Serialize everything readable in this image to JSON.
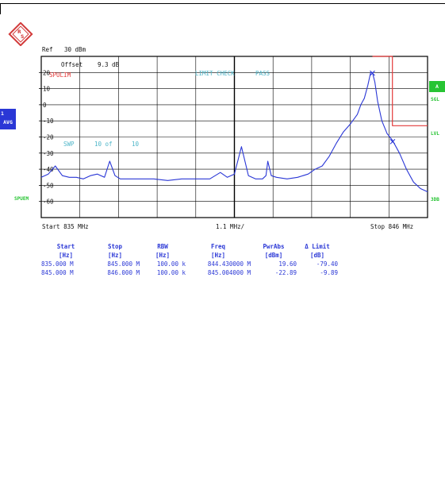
{
  "header": {
    "ref_label": "Ref",
    "ref_value": "30 dBm",
    "offset_label": "Offset",
    "offset_value": "9.3 dB"
  },
  "badges": {
    "trace": [
      "1",
      "AVG"
    ],
    "right": "A",
    "right_labels": [
      "SGL",
      "LVL",
      "3DB"
    ],
    "left_bottom": "SPUEM"
  },
  "overlay": {
    "limit_line": "SPULIM",
    "limit_check": "LIMIT CHECK",
    "limit_result": "PASS",
    "sweep_label": "SWP",
    "sweep_count": "10 of",
    "sweep_total": "10"
  },
  "footer": {
    "start": "Start 835 MHz",
    "span": "1.1 MHz/",
    "stop": "Stop 846 MHz"
  },
  "colors": {
    "trace": "#2a37d6",
    "limit": "#e43a3a",
    "grid": "#000000",
    "badge_blue": "#2a37d6",
    "badge_green": "#27c433",
    "overlay_text": "#4fb6c9"
  },
  "chart_data": {
    "type": "line",
    "x_unit": "MHz",
    "y_unit": "dBm",
    "xlim": [
      835,
      846
    ],
    "ylim": [
      -70,
      30
    ],
    "y_ticks": [
      20,
      10,
      0,
      -10,
      -20,
      -30,
      -40,
      -50,
      -60
    ],
    "y_tick_labels": [
      "20",
      "10",
      "0",
      "-10",
      "-20",
      "-30",
      "-40",
      "-50",
      "-60"
    ],
    "grid": true,
    "series": [
      {
        "role": "trace",
        "x": [
          835.0,
          835.2,
          835.4,
          835.6,
          835.8,
          836.0,
          836.2,
          836.4,
          836.6,
          836.8,
          836.95,
          837.1,
          837.25,
          837.5,
          837.8,
          838.2,
          838.6,
          839.0,
          839.4,
          839.8,
          840.1,
          840.3,
          840.5,
          840.7,
          840.9,
          841.1,
          841.3,
          841.4,
          841.45,
          841.55,
          841.7,
          842.0,
          842.3,
          842.6,
          842.8,
          843.0,
          843.2,
          843.4,
          843.6,
          843.8,
          844.0,
          844.1,
          844.2,
          844.3,
          844.38,
          844.43,
          844.5,
          844.58,
          844.7,
          844.85,
          845.0,
          845.2,
          845.4,
          845.6,
          845.8,
          846.0
        ],
        "y": [
          -45,
          -43,
          -38,
          -44,
          -45,
          -45,
          -46,
          -44,
          -43,
          -45,
          -35,
          -44,
          -46,
          -46,
          -46,
          -46,
          -47,
          -46,
          -46,
          -46,
          -42,
          -45,
          -43,
          -26,
          -44,
          -46,
          -46,
          -44,
          -35,
          -44,
          -45,
          -46,
          -45,
          -43,
          -40,
          -38,
          -32,
          -24,
          -17,
          -12,
          -6,
          0,
          4,
          12,
          20,
          20,
          14,
          2,
          -10,
          -18,
          -22,
          -30,
          -40,
          -48,
          -52,
          -54
        ]
      },
      {
        "role": "limit",
        "x": [
          844.43,
          845.0,
          845.0,
          846.0
        ],
        "y": [
          30,
          30,
          -13,
          -13
        ]
      }
    ],
    "markers": [
      {
        "x": 844.43,
        "y": 19.6
      },
      {
        "x": 845.004,
        "y": -22.89
      }
    ]
  },
  "results": {
    "headers": [
      "Start",
      "Stop",
      "RBW",
      "Freq",
      "PwrAbs",
      "Δ Limit"
    ],
    "units": [
      "[Hz]",
      "[Hz]",
      "[Hz]",
      "[Hz]",
      "[dBm]",
      "[dB]"
    ],
    "rows": [
      [
        "835.000 M",
        "845.000 M",
        "100.00 k",
        "844.430000 M",
        "19.60",
        "-79.40"
      ],
      [
        "845.000 M",
        "846.000 M",
        "100.00 k",
        "845.004000 M",
        "-22.89",
        "-9.89"
      ]
    ]
  }
}
